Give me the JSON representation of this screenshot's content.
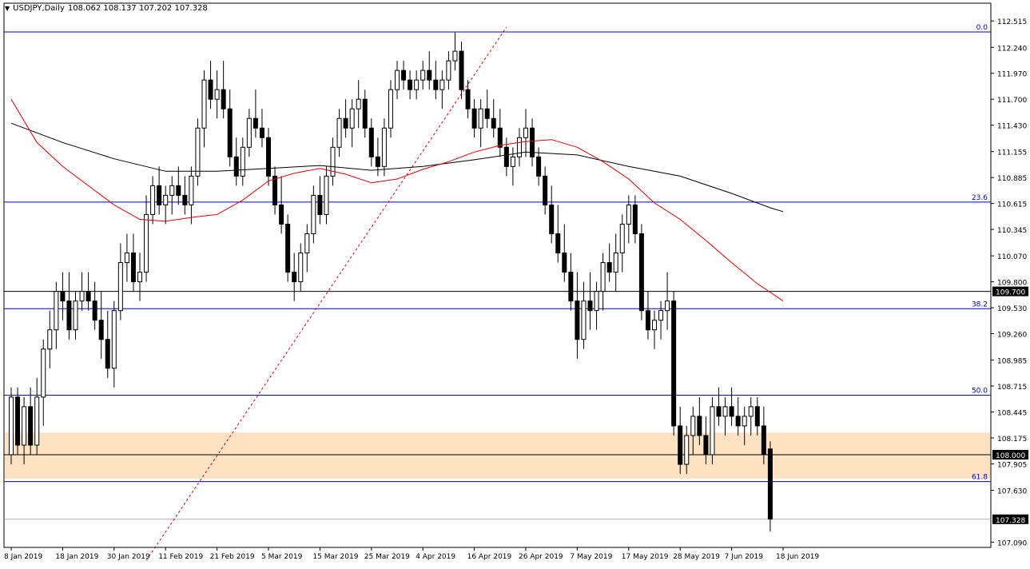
{
  "header": {
    "menu_icon": "triangle-down-icon",
    "symbol": "USDJPY,Daily",
    "ohlc": "108.062 108.137 107.202 107.328"
  },
  "chart_data": {
    "type": "candlestick",
    "symbol": "USDJPY",
    "timeframe": "Daily",
    "ylim": [
      107.0,
      112.6
    ],
    "grid": false,
    "y_ticks": [
      112.515,
      112.24,
      111.97,
      111.7,
      111.43,
      111.155,
      110.885,
      110.615,
      110.345,
      110.07,
      109.8,
      109.53,
      109.26,
      108.985,
      108.715,
      108.445,
      108.175,
      107.905,
      107.63,
      107.09
    ],
    "x_ticks": [
      {
        "label": "8 Jan 2019",
        "i": 0
      },
      {
        "label": "18 Jan 2019",
        "i": 8
      },
      {
        "label": "30 Jan 2019",
        "i": 16
      },
      {
        "label": "11 Feb 2019",
        "i": 24
      },
      {
        "label": "21 Feb 2019",
        "i": 32
      },
      {
        "label": "5 Mar 2019",
        "i": 40
      },
      {
        "label": "15 Mar 2019",
        "i": 48
      },
      {
        "label": "25 Mar 2019",
        "i": 56
      },
      {
        "label": "4 Apr 2019",
        "i": 64
      },
      {
        "label": "16 Apr 2019",
        "i": 72
      },
      {
        "label": "26 Apr 2019",
        "i": 80
      },
      {
        "label": "7 May 2019",
        "i": 88
      },
      {
        "label": "17 May 2019",
        "i": 96
      },
      {
        "label": "28 May 2019",
        "i": 104
      },
      {
        "label": "7 Jun 2019",
        "i": 112
      },
      {
        "label": "18 Jun 2019",
        "i": 120
      }
    ],
    "fib_levels": [
      {
        "label": "0.0",
        "price": 112.4
      },
      {
        "label": "23.6",
        "price": 110.63
      },
      {
        "label": "38.2",
        "price": 109.52
      },
      {
        "label": "50.0",
        "price": 108.62
      },
      {
        "label": "61.8",
        "price": 107.72
      }
    ],
    "horizontal_lines": [
      {
        "price": 109.7,
        "label": "109.700"
      },
      {
        "price": 108.0,
        "label": "108.000"
      },
      {
        "price": 107.328,
        "label": "107.328"
      }
    ],
    "zone": {
      "from": 107.75,
      "to": 108.23,
      "color": "#fde3c3"
    },
    "ma_fast": {
      "color": "#d80000",
      "points": [
        [
          0,
          111.7
        ],
        [
          4,
          111.25
        ],
        [
          8,
          111.0
        ],
        [
          12,
          110.8
        ],
        [
          16,
          110.6
        ],
        [
          20,
          110.45
        ],
        [
          24,
          110.43
        ],
        [
          28,
          110.47
        ],
        [
          32,
          110.5
        ],
        [
          36,
          110.65
        ],
        [
          40,
          110.85
        ],
        [
          44,
          110.93
        ],
        [
          48,
          110.98
        ],
        [
          52,
          110.92
        ],
        [
          56,
          110.83
        ],
        [
          60,
          110.87
        ],
        [
          64,
          110.97
        ],
        [
          68,
          111.05
        ],
        [
          72,
          111.15
        ],
        [
          76,
          111.22
        ],
        [
          80,
          111.26
        ],
        [
          84,
          111.28
        ],
        [
          88,
          111.2
        ],
        [
          92,
          111.05
        ],
        [
          96,
          110.87
        ],
        [
          100,
          110.62
        ],
        [
          104,
          110.45
        ],
        [
          108,
          110.23
        ],
        [
          112,
          110.0
        ],
        [
          116,
          109.78
        ],
        [
          120,
          109.6
        ]
      ]
    },
    "ma_slow": {
      "color": "#000000",
      "points": [
        [
          0,
          111.45
        ],
        [
          8,
          111.25
        ],
        [
          16,
          111.08
        ],
        [
          24,
          110.95
        ],
        [
          32,
          110.95
        ],
        [
          40,
          110.98
        ],
        [
          48,
          111.01
        ],
        [
          56,
          110.96
        ],
        [
          64,
          111.0
        ],
        [
          72,
          111.07
        ],
        [
          80,
          111.15
        ],
        [
          88,
          111.12
        ],
        [
          96,
          111.0
        ],
        [
          104,
          110.9
        ],
        [
          112,
          110.72
        ],
        [
          118,
          110.57
        ],
        [
          120,
          110.53
        ]
      ]
    },
    "trendline": {
      "color": "#d80000",
      "dashed": true,
      "from": {
        "i": 21,
        "price": 106.9
      },
      "to": {
        "i": 77,
        "price": 112.45
      }
    },
    "candles": [
      [
        108.0,
        108.7,
        107.9,
        108.6
      ],
      [
        108.6,
        108.7,
        108.0,
        108.1
      ],
      [
        108.1,
        108.6,
        107.9,
        108.5
      ],
      [
        108.5,
        108.7,
        108.0,
        108.1
      ],
      [
        108.1,
        108.8,
        108.0,
        108.6
      ],
      [
        108.6,
        109.2,
        108.3,
        109.1
      ],
      [
        109.1,
        109.5,
        108.9,
        109.3
      ],
      [
        109.3,
        109.8,
        109.1,
        109.7
      ],
      [
        109.7,
        109.9,
        109.4,
        109.6
      ],
      [
        109.6,
        109.9,
        109.2,
        109.3
      ],
      [
        109.3,
        109.7,
        109.2,
        109.6
      ],
      [
        109.6,
        109.9,
        109.5,
        109.7
      ],
      [
        109.7,
        109.9,
        109.5,
        109.6
      ],
      [
        109.6,
        109.8,
        109.3,
        109.4
      ],
      [
        109.4,
        109.7,
        109.0,
        109.2
      ],
      [
        109.2,
        109.5,
        108.8,
        108.9
      ],
      [
        108.9,
        109.6,
        108.7,
        109.5
      ],
      [
        109.5,
        110.2,
        109.4,
        110.0
      ],
      [
        110.0,
        110.3,
        109.8,
        110.1
      ],
      [
        110.1,
        110.3,
        109.7,
        109.8
      ],
      [
        109.8,
        110.1,
        109.6,
        109.9
      ],
      [
        109.9,
        110.7,
        109.8,
        110.5
      ],
      [
        110.5,
        110.9,
        110.4,
        110.8
      ],
      [
        110.8,
        111.0,
        110.5,
        110.6
      ],
      [
        110.6,
        110.8,
        110.4,
        110.7
      ],
      [
        110.7,
        110.9,
        110.5,
        110.8
      ],
      [
        110.8,
        111.0,
        110.6,
        110.7
      ],
      [
        110.7,
        110.9,
        110.5,
        110.6
      ],
      [
        110.6,
        111.0,
        110.4,
        110.9
      ],
      [
        110.9,
        111.5,
        110.8,
        111.4
      ],
      [
        111.4,
        112.0,
        111.2,
        111.9
      ],
      [
        111.9,
        112.1,
        111.6,
        111.7
      ],
      [
        111.7,
        112.0,
        111.5,
        111.8
      ],
      [
        111.8,
        112.1,
        111.5,
        111.6
      ],
      [
        111.6,
        111.8,
        111.0,
        111.1
      ],
      [
        111.1,
        111.3,
        110.8,
        110.9
      ],
      [
        110.9,
        111.3,
        110.8,
        111.2
      ],
      [
        111.2,
        111.6,
        111.1,
        111.5
      ],
      [
        111.5,
        111.8,
        111.3,
        111.4
      ],
      [
        111.4,
        111.6,
        111.2,
        111.3
      ],
      [
        111.3,
        111.4,
        110.8,
        110.9
      ],
      [
        110.9,
        111.0,
        110.5,
        110.6
      ],
      [
        110.6,
        110.9,
        110.3,
        110.4
      ],
      [
        110.4,
        110.5,
        109.8,
        109.9
      ],
      [
        109.9,
        110.1,
        109.6,
        109.8
      ],
      [
        109.8,
        110.2,
        109.7,
        110.1
      ],
      [
        110.1,
        110.4,
        109.9,
        110.3
      ],
      [
        110.3,
        110.8,
        110.2,
        110.7
      ],
      [
        110.7,
        110.9,
        110.4,
        110.5
      ],
      [
        110.5,
        111.0,
        110.4,
        110.9
      ],
      [
        110.9,
        111.3,
        110.8,
        111.2
      ],
      [
        111.2,
        111.6,
        111.1,
        111.5
      ],
      [
        111.5,
        111.7,
        111.3,
        111.4
      ],
      [
        111.4,
        111.7,
        111.2,
        111.6
      ],
      [
        111.6,
        111.9,
        111.4,
        111.7
      ],
      [
        111.7,
        111.8,
        111.3,
        111.4
      ],
      [
        111.4,
        111.5,
        111.0,
        111.1
      ],
      [
        111.1,
        111.3,
        110.9,
        111.0
      ],
      [
        111.0,
        111.5,
        110.9,
        111.4
      ],
      [
        111.4,
        111.9,
        111.3,
        111.8
      ],
      [
        111.8,
        112.1,
        111.7,
        112.0
      ],
      [
        112.0,
        112.1,
        111.8,
        111.9
      ],
      [
        111.9,
        112.0,
        111.7,
        111.8
      ],
      [
        111.8,
        112.0,
        111.7,
        111.9
      ],
      [
        111.9,
        112.1,
        111.8,
        112.0
      ],
      [
        112.0,
        112.2,
        111.8,
        111.9
      ],
      [
        111.9,
        112.1,
        111.7,
        111.8
      ],
      [
        111.8,
        112.0,
        111.6,
        111.9
      ],
      [
        111.9,
        112.2,
        111.8,
        112.1
      ],
      [
        112.1,
        112.4,
        112.0,
        112.2
      ],
      [
        112.2,
        112.3,
        111.7,
        111.8
      ],
      [
        111.8,
        111.9,
        111.5,
        111.6
      ],
      [
        111.6,
        111.7,
        111.3,
        111.4
      ],
      [
        111.4,
        111.7,
        111.2,
        111.6
      ],
      [
        111.6,
        111.8,
        111.4,
        111.5
      ],
      [
        111.5,
        111.7,
        111.3,
        111.4
      ],
      [
        111.4,
        111.6,
        111.1,
        111.2
      ],
      [
        111.2,
        111.3,
        110.9,
        111.0
      ],
      [
        111.0,
        111.2,
        110.8,
        111.1
      ],
      [
        111.1,
        111.4,
        111.0,
        111.3
      ],
      [
        111.3,
        111.6,
        111.1,
        111.4
      ],
      [
        111.4,
        111.5,
        111.0,
        111.1
      ],
      [
        111.1,
        111.2,
        110.8,
        110.9
      ],
      [
        110.9,
        111.0,
        110.5,
        110.6
      ],
      [
        110.6,
        110.8,
        110.2,
        110.3
      ],
      [
        110.3,
        110.6,
        110.0,
        110.1
      ],
      [
        110.1,
        110.4,
        109.8,
        109.9
      ],
      [
        109.9,
        110.1,
        109.5,
        109.6
      ],
      [
        109.6,
        109.9,
        109.0,
        109.2
      ],
      [
        109.2,
        109.8,
        109.1,
        109.6
      ],
      [
        109.6,
        109.9,
        109.3,
        109.5
      ],
      [
        109.5,
        109.8,
        109.3,
        109.7
      ],
      [
        109.7,
        110.1,
        109.5,
        110.0
      ],
      [
        110.0,
        110.2,
        109.8,
        109.9
      ],
      [
        109.9,
        110.3,
        109.7,
        110.1
      ],
      [
        110.1,
        110.5,
        109.9,
        110.4
      ],
      [
        110.4,
        110.7,
        110.2,
        110.6
      ],
      [
        110.6,
        110.7,
        110.2,
        110.3
      ],
      [
        110.3,
        110.4,
        109.4,
        109.5
      ],
      [
        109.5,
        109.7,
        109.2,
        109.3
      ],
      [
        109.3,
        109.5,
        109.1,
        109.4
      ],
      [
        109.4,
        109.6,
        109.2,
        109.5
      ],
      [
        109.5,
        109.9,
        109.3,
        109.6
      ],
      [
        109.6,
        109.7,
        108.2,
        108.3
      ],
      [
        108.3,
        108.5,
        107.8,
        107.9
      ],
      [
        107.9,
        108.3,
        107.8,
        108.2
      ],
      [
        108.2,
        108.5,
        108.0,
        108.4
      ],
      [
        108.4,
        108.6,
        108.1,
        108.2
      ],
      [
        108.2,
        108.4,
        107.9,
        108.0
      ],
      [
        108.0,
        108.6,
        107.9,
        108.5
      ],
      [
        108.5,
        108.7,
        108.3,
        108.4
      ],
      [
        108.4,
        108.6,
        108.2,
        108.5
      ],
      [
        108.5,
        108.7,
        108.3,
        108.4
      ],
      [
        108.4,
        108.6,
        108.2,
        108.3
      ],
      [
        108.3,
        108.5,
        108.1,
        108.4
      ],
      [
        108.4,
        108.6,
        108.2,
        108.5
      ],
      [
        108.5,
        108.6,
        108.2,
        108.3
      ],
      [
        108.3,
        108.5,
        107.9,
        108.0
      ],
      [
        108.06,
        108.14,
        107.2,
        107.33
      ]
    ]
  },
  "axis_labels_styles": {
    "price_line_color": "#0000cc",
    "fib_label_color": "#0000cc"
  }
}
